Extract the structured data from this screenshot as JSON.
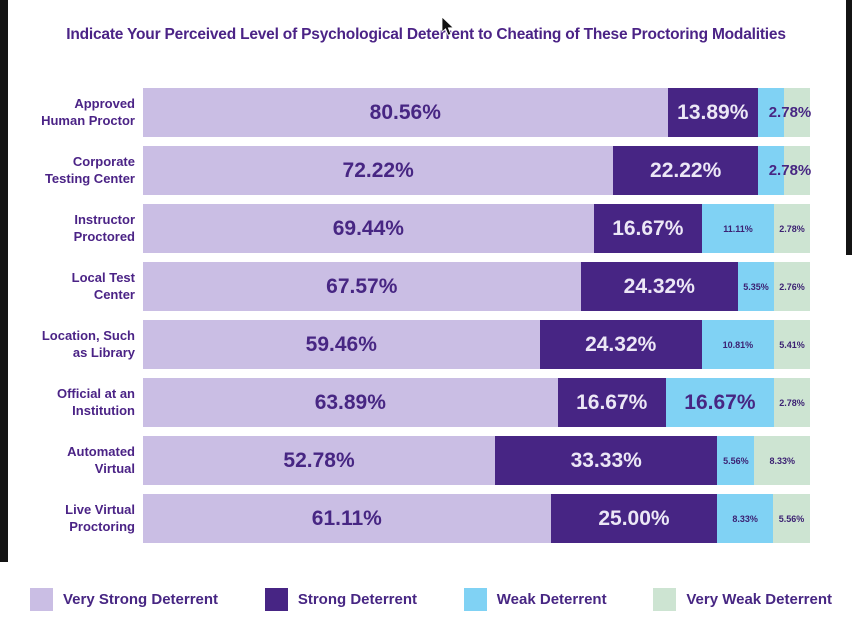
{
  "title": "Indicate Your Perceived Level of Psychological Deterrent to Cheating of These Proctoring Modalities",
  "colors": {
    "very_strong": "#cabee4",
    "strong": "#472584",
    "weak": "#80d2f4",
    "very_weak": "#cde4d2",
    "text_purple": "#4b2386"
  },
  "legend": [
    {
      "label": "Very Strong Deterrent",
      "color_key": "very_strong"
    },
    {
      "label": "Strong Deterrent",
      "color_key": "strong"
    },
    {
      "label": "Weak Deterrent",
      "color_key": "weak"
    },
    {
      "label": "Very Weak Deterrent",
      "color_key": "very_weak"
    }
  ],
  "chart_data": {
    "type": "bar",
    "orientation": "horizontal",
    "stacked": true,
    "unit": "%",
    "xlim": [
      0,
      100
    ],
    "grid": false,
    "legend_position": "bottom",
    "title": "Indicate Your Perceived Level of Psychological Deterrent to Cheating of These Proctoring Modalities",
    "categories": [
      "Approved Human Proctor",
      "Corporate Testing Center",
      "Instructor Proctored",
      "Local Test Center",
      "Location, Such as Library",
      "Official at an Institution",
      "Automated Virtual",
      "Live Virtual Proctoring"
    ],
    "series": [
      {
        "name": "Very Strong Deterrent",
        "values": [
          80.56,
          72.22,
          69.44,
          67.57,
          59.46,
          63.89,
          52.78,
          61.11
        ]
      },
      {
        "name": "Strong Deterrent",
        "values": [
          13.89,
          22.22,
          16.67,
          24.32,
          24.32,
          16.67,
          33.33,
          25.0
        ]
      },
      {
        "name": "Weak Deterrent",
        "values": [
          2.78,
          2.78,
          11.11,
          5.35,
          10.81,
          16.67,
          5.56,
          8.33
        ]
      },
      {
        "name": "Very Weak Deterrent",
        "values": [
          2.78,
          2.78,
          2.78,
          2.76,
          5.41,
          2.78,
          8.33,
          5.56
        ]
      }
    ],
    "rows": [
      {
        "label_lines": [
          "Approved",
          "Human Proctor"
        ],
        "tail_label": "2.78%",
        "segments": [
          {
            "key": "very_strong",
            "value": 80.56,
            "label": "80.56%",
            "style": "big-light"
          },
          {
            "key": "strong",
            "value": 13.89,
            "label": "13.89%",
            "style": "big-dark"
          },
          {
            "key": "weak",
            "value": 2.78,
            "label": "",
            "style": "none"
          },
          {
            "key": "very_weak",
            "value": 2.78,
            "label": "",
            "style": "none"
          }
        ]
      },
      {
        "label_lines": [
          "Corporate",
          "Testing Center"
        ],
        "tail_label": "2.78%",
        "segments": [
          {
            "key": "very_strong",
            "value": 72.22,
            "label": "72.22%",
            "style": "big-light"
          },
          {
            "key": "strong",
            "value": 22.22,
            "label": "22.22%",
            "style": "big-dark"
          },
          {
            "key": "weak",
            "value": 2.78,
            "label": "",
            "style": "none"
          },
          {
            "key": "very_weak",
            "value": 2.78,
            "label": "",
            "style": "none"
          }
        ]
      },
      {
        "label_lines": [
          "Instructor",
          "Proctored"
        ],
        "tail_label": "",
        "segments": [
          {
            "key": "very_strong",
            "value": 69.44,
            "label": "69.44%",
            "style": "big-light"
          },
          {
            "key": "strong",
            "value": 16.67,
            "label": "16.67%",
            "style": "big-dark"
          },
          {
            "key": "weak",
            "value": 11.11,
            "label": "11.11%",
            "style": "small"
          },
          {
            "key": "very_weak",
            "value": 2.78,
            "label": "2.78%",
            "style": "small"
          }
        ]
      },
      {
        "label_lines": [
          "Local Test",
          "Center"
        ],
        "tail_label": "",
        "segments": [
          {
            "key": "very_strong",
            "value": 67.57,
            "label": "67.57%",
            "style": "big-light"
          },
          {
            "key": "strong",
            "value": 24.32,
            "label": "24.32%",
            "style": "big-dark"
          },
          {
            "key": "weak",
            "value": 5.35,
            "label": "5.35%",
            "style": "small"
          },
          {
            "key": "very_weak",
            "value": 2.76,
            "label": "2.76%",
            "style": "small"
          }
        ]
      },
      {
        "label_lines": [
          "Location, Such",
          "as Library"
        ],
        "tail_label": "",
        "segments": [
          {
            "key": "very_strong",
            "value": 59.46,
            "label": "59.46%",
            "style": "big-light"
          },
          {
            "key": "strong",
            "value": 24.32,
            "label": "24.32%",
            "style": "big-dark"
          },
          {
            "key": "weak",
            "value": 10.81,
            "label": "10.81%",
            "style": "small"
          },
          {
            "key": "very_weak",
            "value": 5.41,
            "label": "5.41%",
            "style": "small"
          }
        ]
      },
      {
        "label_lines": [
          "Official at an",
          "Institution"
        ],
        "tail_label": "",
        "segments": [
          {
            "key": "very_strong",
            "value": 63.89,
            "label": "63.89%",
            "style": "big-light"
          },
          {
            "key": "strong",
            "value": 16.67,
            "label": "16.67%",
            "style": "big-dark"
          },
          {
            "key": "weak",
            "value": 16.67,
            "label": "16.67%",
            "style": "big-light"
          },
          {
            "key": "very_weak",
            "value": 2.78,
            "label": "2.78%",
            "style": "small"
          }
        ]
      },
      {
        "label_lines": [
          "Automated",
          "Virtual"
        ],
        "tail_label": "",
        "segments": [
          {
            "key": "very_strong",
            "value": 52.78,
            "label": "52.78%",
            "style": "big-light"
          },
          {
            "key": "strong",
            "value": 33.33,
            "label": "33.33%",
            "style": "big-dark"
          },
          {
            "key": "weak",
            "value": 5.56,
            "label": "5.56%",
            "style": "small"
          },
          {
            "key": "very_weak",
            "value": 8.33,
            "label": "8.33%",
            "style": "small"
          }
        ]
      },
      {
        "label_lines": [
          "Live Virtual",
          "Proctoring"
        ],
        "tail_label": "",
        "segments": [
          {
            "key": "very_strong",
            "value": 61.11,
            "label": "61.11%",
            "style": "big-light"
          },
          {
            "key": "strong",
            "value": 25.0,
            "label": "25.00%",
            "style": "big-dark"
          },
          {
            "key": "weak",
            "value": 8.33,
            "label": "8.33%",
            "style": "small"
          },
          {
            "key": "very_weak",
            "value": 5.56,
            "label": "5.56%",
            "style": "small"
          }
        ]
      }
    ]
  }
}
